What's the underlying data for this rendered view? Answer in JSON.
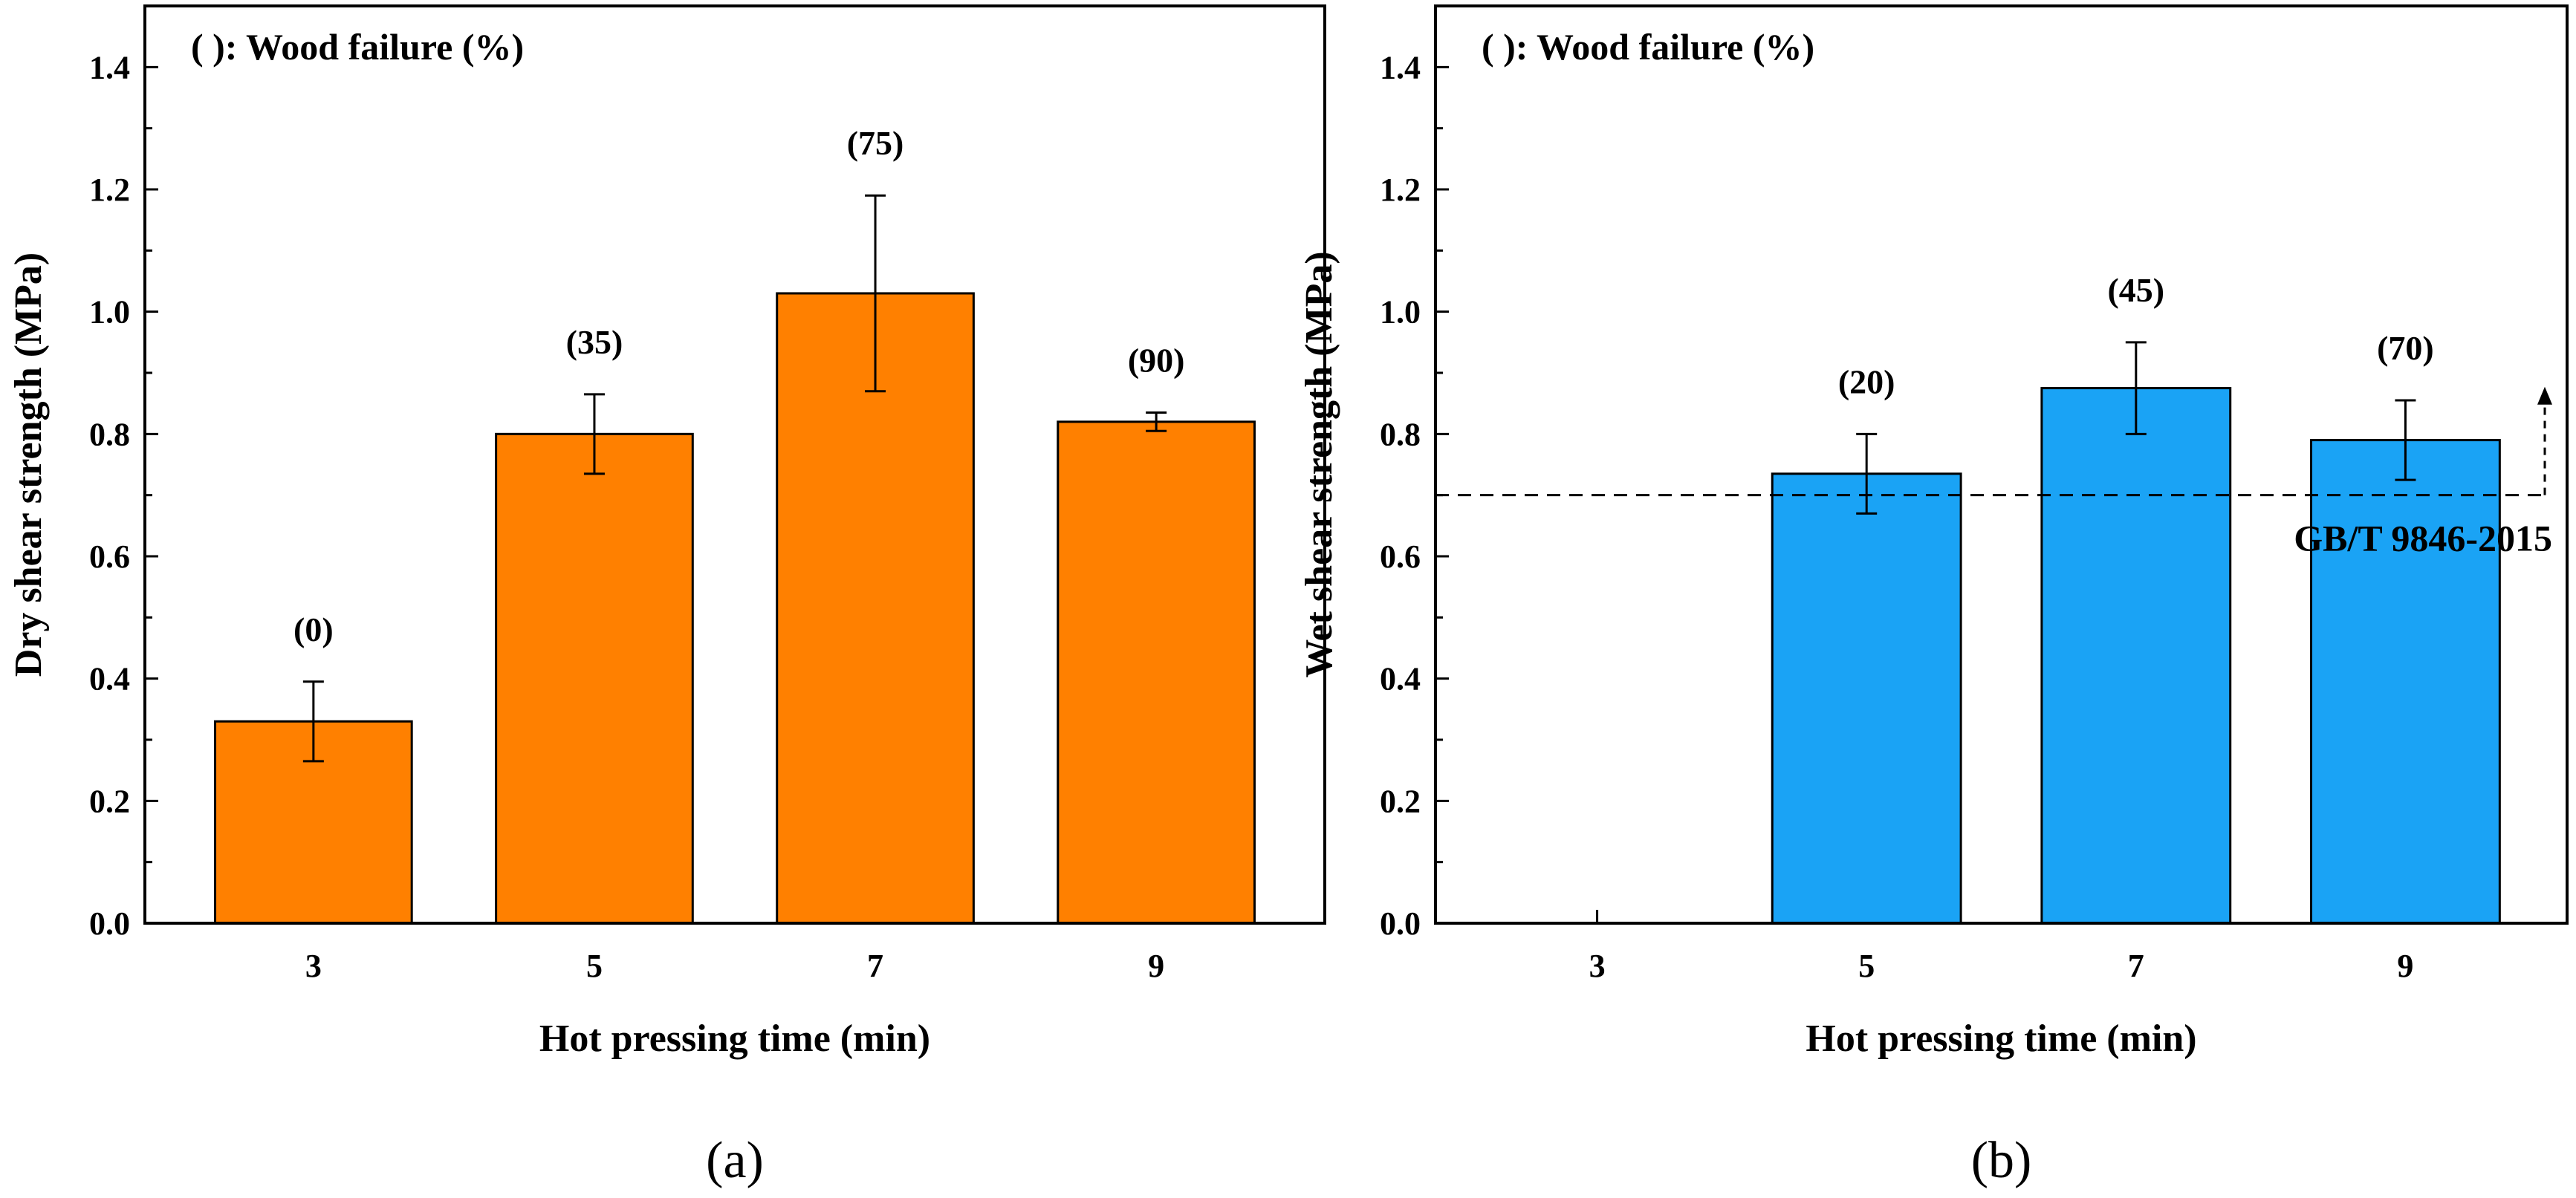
{
  "chart_data": [
    {
      "type": "bar",
      "panel_label": "(a)",
      "title": "",
      "annotation": "( ): Wood failure (%)",
      "xlabel": "Hot pressing time (min)",
      "ylabel": "Dry shear strength (MPa)",
      "categories": [
        "3",
        "5",
        "7",
        "9"
      ],
      "values": [
        0.33,
        0.8,
        1.03,
        0.82
      ],
      "errors": [
        0.065,
        0.065,
        0.16,
        0.015
      ],
      "wood_failure_labels": [
        "(0)",
        "(35)",
        "(75)",
        "(90)"
      ],
      "ylim": [
        0,
        1.5
      ],
      "yticks": [
        "0.0",
        "0.2",
        "0.4",
        "0.6",
        "0.8",
        "1.0",
        "1.2",
        "1.4"
      ],
      "bar_color": "#FF8000",
      "legend": "none"
    },
    {
      "type": "bar",
      "panel_label": "(b)",
      "title": "",
      "annotation": "( ): Wood failure (%)",
      "xlabel": "Hot pressing time (min)",
      "ylabel": "Wet shear strength (MPa)",
      "categories": [
        "3",
        "5",
        "7",
        "9"
      ],
      "values": [
        null,
        0.735,
        0.875,
        0.79
      ],
      "errors": [
        null,
        0.065,
        0.075,
        0.065
      ],
      "wood_failure_labels": [
        "",
        "(20)",
        "(45)",
        "(70)"
      ],
      "ylim": [
        0,
        1.5
      ],
      "yticks": [
        "0.0",
        "0.2",
        "0.4",
        "0.6",
        "0.8",
        "1.0",
        "1.2",
        "1.4"
      ],
      "bar_color": "#1AA3F5",
      "reference_line": {
        "value": 0.7,
        "label": "GB/T 9846-2015",
        "style": "dashed"
      },
      "legend": "none"
    }
  ]
}
